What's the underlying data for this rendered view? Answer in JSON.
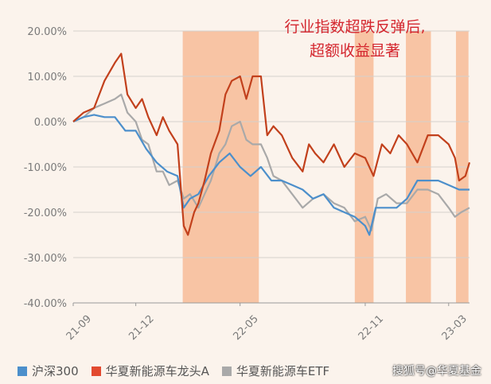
{
  "annotation": {
    "line1": "行业指数超跌反弹后,",
    "line2": "超额收益显著"
  },
  "watermark": "搜狐号@华夏基金",
  "colors": {
    "background": "#fbf3ec",
    "csi300": "#4c8fcb",
    "leader_a": "#c2401c",
    "nev_index": "#a9a9a9",
    "highlight": "#f7b48c"
  },
  "chart_data": {
    "type": "line",
    "title": "",
    "xlabel": "",
    "ylabel": "",
    "ylim": [
      -40,
      20
    ],
    "y_ticks": [
      "20.00%",
      "10.00%",
      "0.00%",
      "-10.00%",
      "-20.00%",
      "-30.00%",
      "-40.00%"
    ],
    "y_tick_values": [
      20,
      10,
      0,
      -10,
      -20,
      -30,
      -40
    ],
    "x_ticks": [
      "21-09",
      "21-12",
      "22-05",
      "22-11",
      "23-03"
    ],
    "x_tick_months": [
      0,
      3,
      8,
      14,
      18
    ],
    "grid": true,
    "legend_position": "bottom",
    "highlight_ranges_months": [
      [
        5.25,
        8.9
      ],
      [
        13.5,
        14.4
      ],
      [
        15.95,
        17.15
      ],
      [
        18.35,
        18.95
      ]
    ],
    "series": [
      {
        "name": "沪深300",
        "color": "#4c8fcb",
        "points": [
          [
            0,
            0
          ],
          [
            0.5,
            1
          ],
          [
            1,
            1.5
          ],
          [
            1.5,
            1
          ],
          [
            2,
            1
          ],
          [
            2.5,
            -2
          ],
          [
            3,
            -2
          ],
          [
            3.5,
            -6
          ],
          [
            4,
            -9
          ],
          [
            4.5,
            -11
          ],
          [
            5,
            -12
          ],
          [
            5.3,
            -19
          ],
          [
            5.6,
            -17
          ],
          [
            6,
            -16
          ],
          [
            6.5,
            -12
          ],
          [
            7,
            -9
          ],
          [
            7.5,
            -7
          ],
          [
            8,
            -10
          ],
          [
            8.5,
            -12
          ],
          [
            9,
            -10
          ],
          [
            9.5,
            -13
          ],
          [
            10,
            -13
          ],
          [
            10.5,
            -14
          ],
          [
            11,
            -15
          ],
          [
            11.5,
            -17
          ],
          [
            12,
            -16
          ],
          [
            12.5,
            -19
          ],
          [
            13,
            -20
          ],
          [
            13.5,
            -21
          ],
          [
            14,
            -23
          ],
          [
            14.2,
            -25
          ],
          [
            14.5,
            -19
          ],
          [
            15,
            -19
          ],
          [
            15.5,
            -19
          ],
          [
            16,
            -17
          ],
          [
            16.5,
            -13
          ],
          [
            17,
            -13
          ],
          [
            17.5,
            -13
          ],
          [
            18,
            -14
          ],
          [
            18.5,
            -15
          ],
          [
            19,
            -15
          ]
        ]
      },
      {
        "name": "华夏新能源车龙头A",
        "color": "#c2401c",
        "points": [
          [
            0,
            0
          ],
          [
            0.5,
            2
          ],
          [
            1,
            3
          ],
          [
            1.5,
            9
          ],
          [
            2,
            13
          ],
          [
            2.3,
            15
          ],
          [
            2.6,
            6
          ],
          [
            3,
            3
          ],
          [
            3.3,
            5
          ],
          [
            3.6,
            1
          ],
          [
            4,
            -3
          ],
          [
            4.3,
            1
          ],
          [
            4.6,
            -2
          ],
          [
            5,
            -5
          ],
          [
            5.3,
            -23
          ],
          [
            5.5,
            -25
          ],
          [
            5.8,
            -20
          ],
          [
            6,
            -18
          ],
          [
            6.3,
            -13
          ],
          [
            6.6,
            -7
          ],
          [
            7,
            -2
          ],
          [
            7.3,
            6
          ],
          [
            7.6,
            9
          ],
          [
            8,
            10
          ],
          [
            8.3,
            5
          ],
          [
            8.6,
            10
          ],
          [
            9,
            10
          ],
          [
            9.3,
            -3
          ],
          [
            9.6,
            -1
          ],
          [
            10,
            -3
          ],
          [
            10.5,
            -8
          ],
          [
            11,
            -11
          ],
          [
            11.3,
            -5
          ],
          [
            11.6,
            -7
          ],
          [
            12,
            -9
          ],
          [
            12.5,
            -5
          ],
          [
            13,
            -10
          ],
          [
            13.5,
            -7
          ],
          [
            14,
            -8
          ],
          [
            14.4,
            -12
          ],
          [
            14.8,
            -5
          ],
          [
            15.2,
            -7
          ],
          [
            15.6,
            -3
          ],
          [
            16,
            -5
          ],
          [
            16.5,
            -9
          ],
          [
            17,
            -3
          ],
          [
            17.5,
            -3
          ],
          [
            18,
            -5
          ],
          [
            18.3,
            -8
          ],
          [
            18.5,
            -13
          ],
          [
            18.8,
            -12
          ],
          [
            19,
            -9
          ]
        ]
      },
      {
        "name": "华夏新能源车ETF",
        "color": "#a9a9a9",
        "points": [
          [
            0,
            0
          ],
          [
            0.5,
            1
          ],
          [
            1,
            3
          ],
          [
            1.5,
            4
          ],
          [
            2,
            5
          ],
          [
            2.3,
            6
          ],
          [
            2.6,
            2
          ],
          [
            3,
            0
          ],
          [
            3.3,
            -4
          ],
          [
            3.6,
            -5
          ],
          [
            4,
            -11
          ],
          [
            4.3,
            -11
          ],
          [
            4.6,
            -14
          ],
          [
            5,
            -13
          ],
          [
            5.3,
            -17
          ],
          [
            5.6,
            -16
          ],
          [
            6,
            -19
          ],
          [
            6.3,
            -16
          ],
          [
            6.6,
            -13
          ],
          [
            7,
            -7
          ],
          [
            7.3,
            -5
          ],
          [
            7.6,
            -1
          ],
          [
            8,
            0
          ],
          [
            8.3,
            -4
          ],
          [
            8.6,
            -5
          ],
          [
            9,
            -5
          ],
          [
            9.3,
            -8
          ],
          [
            9.6,
            -12
          ],
          [
            10,
            -13
          ],
          [
            10.5,
            -16
          ],
          [
            11,
            -19
          ],
          [
            11.5,
            -17
          ],
          [
            12,
            -16
          ],
          [
            12.5,
            -18
          ],
          [
            13,
            -19
          ],
          [
            13.5,
            -22
          ],
          [
            14,
            -21
          ],
          [
            14.3,
            -24
          ],
          [
            14.6,
            -17
          ],
          [
            15,
            -16
          ],
          [
            15.5,
            -18
          ],
          [
            16,
            -18
          ],
          [
            16.5,
            -15
          ],
          [
            17,
            -15
          ],
          [
            17.5,
            -16
          ],
          [
            18,
            -19
          ],
          [
            18.3,
            -21
          ],
          [
            18.6,
            -20
          ],
          [
            19,
            -19
          ]
        ]
      }
    ]
  }
}
